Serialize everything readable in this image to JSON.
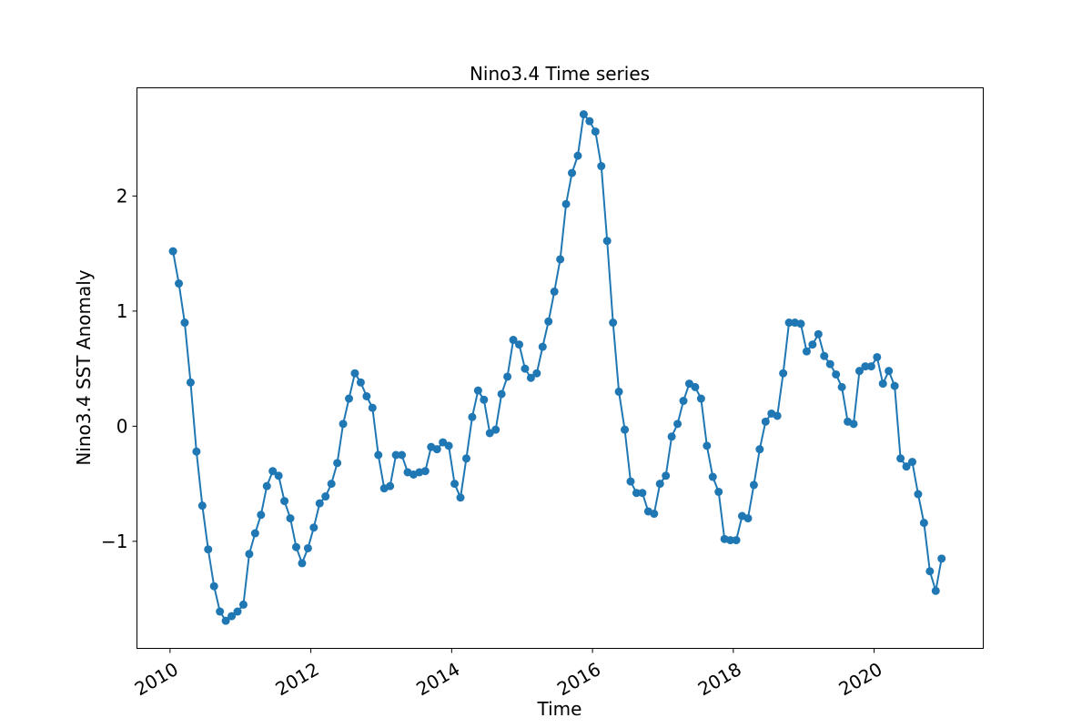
{
  "chart_data": {
    "type": "line",
    "title": "Nino3.4 Time series",
    "xlabel": "Time",
    "ylabel": "Nino3.4 SST Anomaly",
    "xlim": [
      2009.53,
      2021.55
    ],
    "ylim": [
      -1.93,
      2.94
    ],
    "xticks": [
      2010,
      2012,
      2014,
      2016,
      2018,
      2020
    ],
    "xtick_labels": [
      "2010",
      "2012",
      "2014",
      "2016",
      "2018",
      "2020"
    ],
    "yticks": [
      -1,
      0,
      1,
      2
    ],
    "ytick_labels": [
      "−1",
      "0",
      "1",
      "2"
    ],
    "grid": false,
    "legend": "none",
    "x_start": "2010-01",
    "x_step": "monthly",
    "series": [
      {
        "color": "#1f77b4",
        "marker": "circle",
        "values": [
          1.52,
          1.24,
          0.9,
          0.38,
          -0.22,
          -0.69,
          -1.07,
          -1.39,
          -1.61,
          -1.69,
          -1.65,
          -1.61,
          -1.55,
          -1.11,
          -0.93,
          -0.77,
          -0.52,
          -0.39,
          -0.43,
          -0.65,
          -0.8,
          -1.05,
          -1.19,
          -1.06,
          -0.88,
          -0.67,
          -0.61,
          -0.5,
          -0.32,
          0.02,
          0.24,
          0.46,
          0.38,
          0.26,
          0.16,
          -0.25,
          -0.54,
          -0.52,
          -0.25,
          -0.25,
          -0.4,
          -0.42,
          -0.4,
          -0.39,
          -0.18,
          -0.2,
          -0.14,
          -0.17,
          -0.5,
          -0.62,
          -0.28,
          0.08,
          0.31,
          0.23,
          -0.06,
          -0.03,
          0.28,
          0.43,
          0.75,
          0.71,
          0.5,
          0.42,
          0.46,
          0.69,
          0.91,
          1.17,
          1.45,
          1.93,
          2.2,
          2.35,
          2.71,
          2.65,
          2.56,
          2.26,
          1.61,
          0.9,
          0.3,
          -0.03,
          -0.48,
          -0.58,
          -0.58,
          -0.74,
          -0.76,
          -0.5,
          -0.43,
          -0.09,
          0.02,
          0.22,
          0.37,
          0.34,
          0.24,
          -0.17,
          -0.44,
          -0.57,
          -0.98,
          -0.99,
          -0.99,
          -0.78,
          -0.8,
          -0.51,
          -0.2,
          0.04,
          0.11,
          0.09,
          0.46,
          0.9,
          0.9,
          0.89,
          0.65,
          0.71,
          0.8,
          0.61,
          0.54,
          0.45,
          0.34,
          0.04,
          0.02,
          0.48,
          0.52,
          0.52,
          0.6,
          0.37,
          0.48,
          0.35,
          -0.28,
          -0.35,
          -0.31,
          -0.59,
          -0.84,
          -1.26,
          -1.43,
          -1.15
        ]
      }
    ]
  }
}
